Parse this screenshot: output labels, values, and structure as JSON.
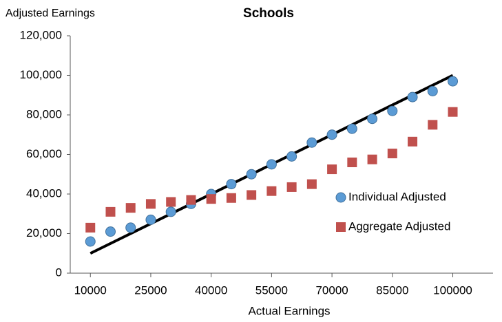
{
  "chart_data": {
    "type": "scatter",
    "title": "Schools",
    "y_label": "Adjusted Earnings",
    "x_label": "Actual Earnings",
    "x": [
      10000,
      15000,
      20000,
      25000,
      30000,
      35000,
      40000,
      45000,
      50000,
      55000,
      60000,
      65000,
      70000,
      75000,
      80000,
      85000,
      90000,
      95000,
      100000
    ],
    "series": [
      {
        "name": "Individual Adjusted",
        "color": "#5b9bd5",
        "marker": "circle",
        "values": [
          16000,
          21000,
          23000,
          27000,
          31000,
          35000,
          40000,
          45000,
          50000,
          55000,
          59000,
          66000,
          70000,
          73000,
          78000,
          82000,
          89000,
          92000,
          97000
        ]
      },
      {
        "name": "Aggregate Adjusted",
        "color": "#c0504d",
        "marker": "square",
        "values": [
          23000,
          31000,
          33000,
          35000,
          36000,
          37000,
          37500,
          38000,
          39500,
          41500,
          43500,
          45000,
          52500,
          56000,
          57500,
          60500,
          66500,
          75000,
          81500
        ]
      }
    ],
    "reference_line": {
      "x": [
        10000,
        100000
      ],
      "values": [
        10000,
        100000
      ],
      "color": "#000000"
    },
    "xlim": [
      5000,
      110000
    ],
    "xticks": [
      10000,
      25000,
      40000,
      55000,
      70000,
      85000,
      100000
    ],
    "ylim": [
      0,
      120000
    ],
    "yticks": [
      0,
      {
        "value": 20000,
        "label": "20,000"
      },
      {
        "value": 40000,
        "label": "40,000"
      },
      {
        "value": 60000,
        "label": "60,000"
      },
      {
        "value": 80000,
        "label": "80,000"
      },
      {
        "value": 100000,
        "label": "100,000"
      },
      {
        "value": 120000,
        "label": "120,000"
      }
    ],
    "grid": false
  }
}
